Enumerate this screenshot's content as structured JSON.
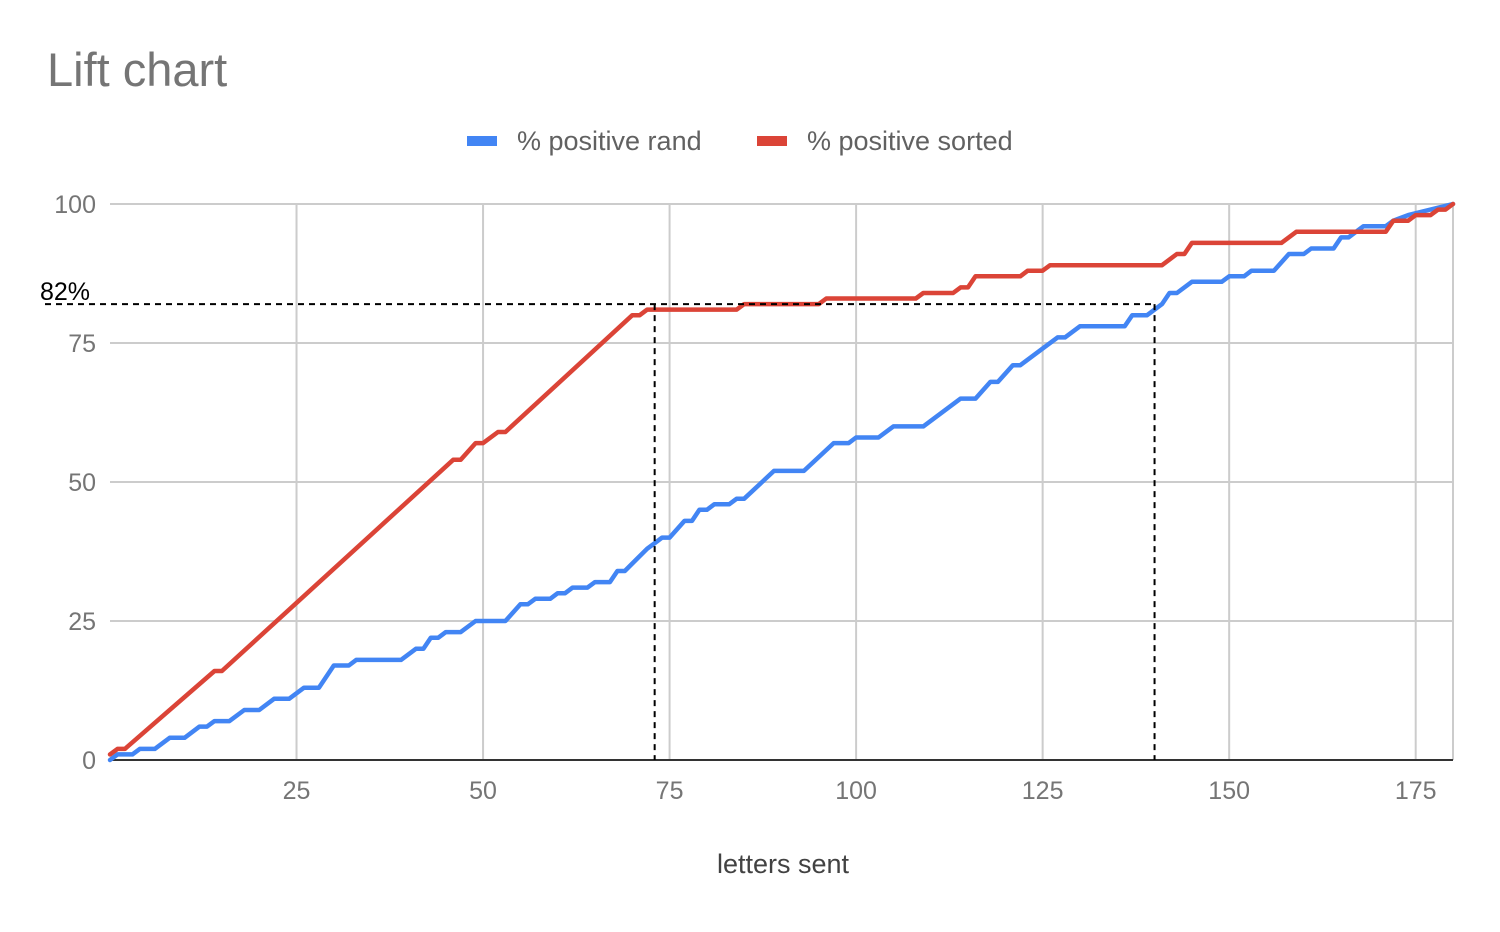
{
  "chart_data": {
    "type": "line",
    "title": "Lift chart",
    "xlabel": "letters sent",
    "ylabel": "",
    "xlim": [
      0,
      180
    ],
    "ylim": [
      0,
      100
    ],
    "x_ticks": [
      25,
      50,
      75,
      100,
      125,
      150,
      175
    ],
    "y_ticks": [
      0,
      25,
      50,
      75,
      100
    ],
    "grid": true,
    "legend_position": "top",
    "series": [
      {
        "name": "% positive rand",
        "color": "#4285f4",
        "points": [
          [
            0,
            0
          ],
          [
            1,
            1
          ],
          [
            3,
            1
          ],
          [
            4,
            2
          ],
          [
            6,
            2
          ],
          [
            8,
            4
          ],
          [
            10,
            4
          ],
          [
            12,
            6
          ],
          [
            13,
            6
          ],
          [
            14,
            7
          ],
          [
            16,
            7
          ],
          [
            18,
            9
          ],
          [
            20,
            9
          ],
          [
            22,
            11
          ],
          [
            24,
            11
          ],
          [
            26,
            13
          ],
          [
            28,
            13
          ],
          [
            30,
            17
          ],
          [
            32,
            17
          ],
          [
            33,
            18
          ],
          [
            39,
            18
          ],
          [
            41,
            20
          ],
          [
            42,
            20
          ],
          [
            43,
            22
          ],
          [
            44,
            22
          ],
          [
            45,
            23
          ],
          [
            47,
            23
          ],
          [
            49,
            25
          ],
          [
            53,
            25
          ],
          [
            55,
            28
          ],
          [
            56,
            28
          ],
          [
            57,
            29
          ],
          [
            59,
            29
          ],
          [
            60,
            30
          ],
          [
            61,
            30
          ],
          [
            62,
            31
          ],
          [
            64,
            31
          ],
          [
            65,
            32
          ],
          [
            67,
            32
          ],
          [
            68,
            34
          ],
          [
            69,
            34
          ],
          [
            72,
            38
          ],
          [
            73,
            39
          ],
          [
            74,
            40
          ],
          [
            75,
            40
          ],
          [
            77,
            43
          ],
          [
            78,
            43
          ],
          [
            79,
            45
          ],
          [
            80,
            45
          ],
          [
            81,
            46
          ],
          [
            83,
            46
          ],
          [
            84,
            47
          ],
          [
            85,
            47
          ],
          [
            89,
            52
          ],
          [
            93,
            52
          ],
          [
            97,
            57
          ],
          [
            99,
            57
          ],
          [
            100,
            58
          ],
          [
            103,
            58
          ],
          [
            105,
            60
          ],
          [
            109,
            60
          ],
          [
            114,
            65
          ],
          [
            116,
            65
          ],
          [
            118,
            68
          ],
          [
            119,
            68
          ],
          [
            121,
            71
          ],
          [
            122,
            71
          ],
          [
            125,
            74
          ],
          [
            127,
            76
          ],
          [
            128,
            76
          ],
          [
            130,
            78
          ],
          [
            136,
            78
          ],
          [
            137,
            80
          ],
          [
            139,
            80
          ],
          [
            141,
            82
          ],
          [
            142,
            84
          ],
          [
            143,
            84
          ],
          [
            145,
            86
          ],
          [
            149,
            86
          ],
          [
            150,
            87
          ],
          [
            152,
            87
          ],
          [
            153,
            88
          ],
          [
            156,
            88
          ],
          [
            158,
            91
          ],
          [
            160,
            91
          ],
          [
            161,
            92
          ],
          [
            164,
            92
          ],
          [
            165,
            94
          ],
          [
            166,
            94
          ],
          [
            168,
            96
          ],
          [
            171,
            96
          ],
          [
            172,
            97
          ],
          [
            174,
            98
          ],
          [
            180,
            100
          ]
        ]
      },
      {
        "name": "% positive sorted",
        "color": "#db4437",
        "points": [
          [
            0,
            1
          ],
          [
            1,
            2
          ],
          [
            2,
            2
          ],
          [
            14,
            16
          ],
          [
            15,
            16
          ],
          [
            46,
            54
          ],
          [
            47,
            54
          ],
          [
            49,
            57
          ],
          [
            50,
            57
          ],
          [
            52,
            59
          ],
          [
            53,
            59
          ],
          [
            70,
            80
          ],
          [
            71,
            80
          ],
          [
            72,
            81
          ],
          [
            84,
            81
          ],
          [
            85,
            82
          ],
          [
            95,
            82
          ],
          [
            96,
            83
          ],
          [
            108,
            83
          ],
          [
            109,
            84
          ],
          [
            113,
            84
          ],
          [
            114,
            85
          ],
          [
            115,
            85
          ],
          [
            116,
            87
          ],
          [
            122,
            87
          ],
          [
            123,
            88
          ],
          [
            125,
            88
          ],
          [
            126,
            89
          ],
          [
            141,
            89
          ],
          [
            143,
            91
          ],
          [
            144,
            91
          ],
          [
            145,
            93
          ],
          [
            157,
            93
          ],
          [
            159,
            95
          ],
          [
            171,
            95
          ],
          [
            172,
            97
          ],
          [
            174,
            97
          ],
          [
            175,
            98
          ],
          [
            177,
            98
          ],
          [
            178,
            99
          ],
          [
            179,
            99
          ],
          [
            180,
            100
          ]
        ]
      }
    ],
    "annotations": {
      "label": "82%",
      "y_value": 82,
      "x_values": [
        73,
        140
      ]
    }
  }
}
